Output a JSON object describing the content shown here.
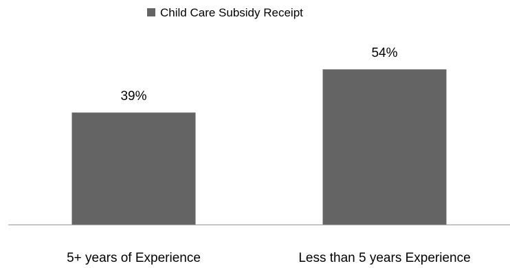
{
  "chart_data": {
    "type": "bar",
    "categories": [
      "5+ years of Experience",
      "Less than 5 years Experience"
    ],
    "series": [
      {
        "name": "Child Care Subsidy Receipt",
        "values": [
          39,
          54
        ],
        "data_labels": [
          "39%",
          "54%"
        ],
        "color": "#646464"
      }
    ],
    "ylim": [
      0,
      100
    ],
    "grid": false,
    "legend": "top-center",
    "title": "",
    "xlabel": "",
    "ylabel": ""
  }
}
